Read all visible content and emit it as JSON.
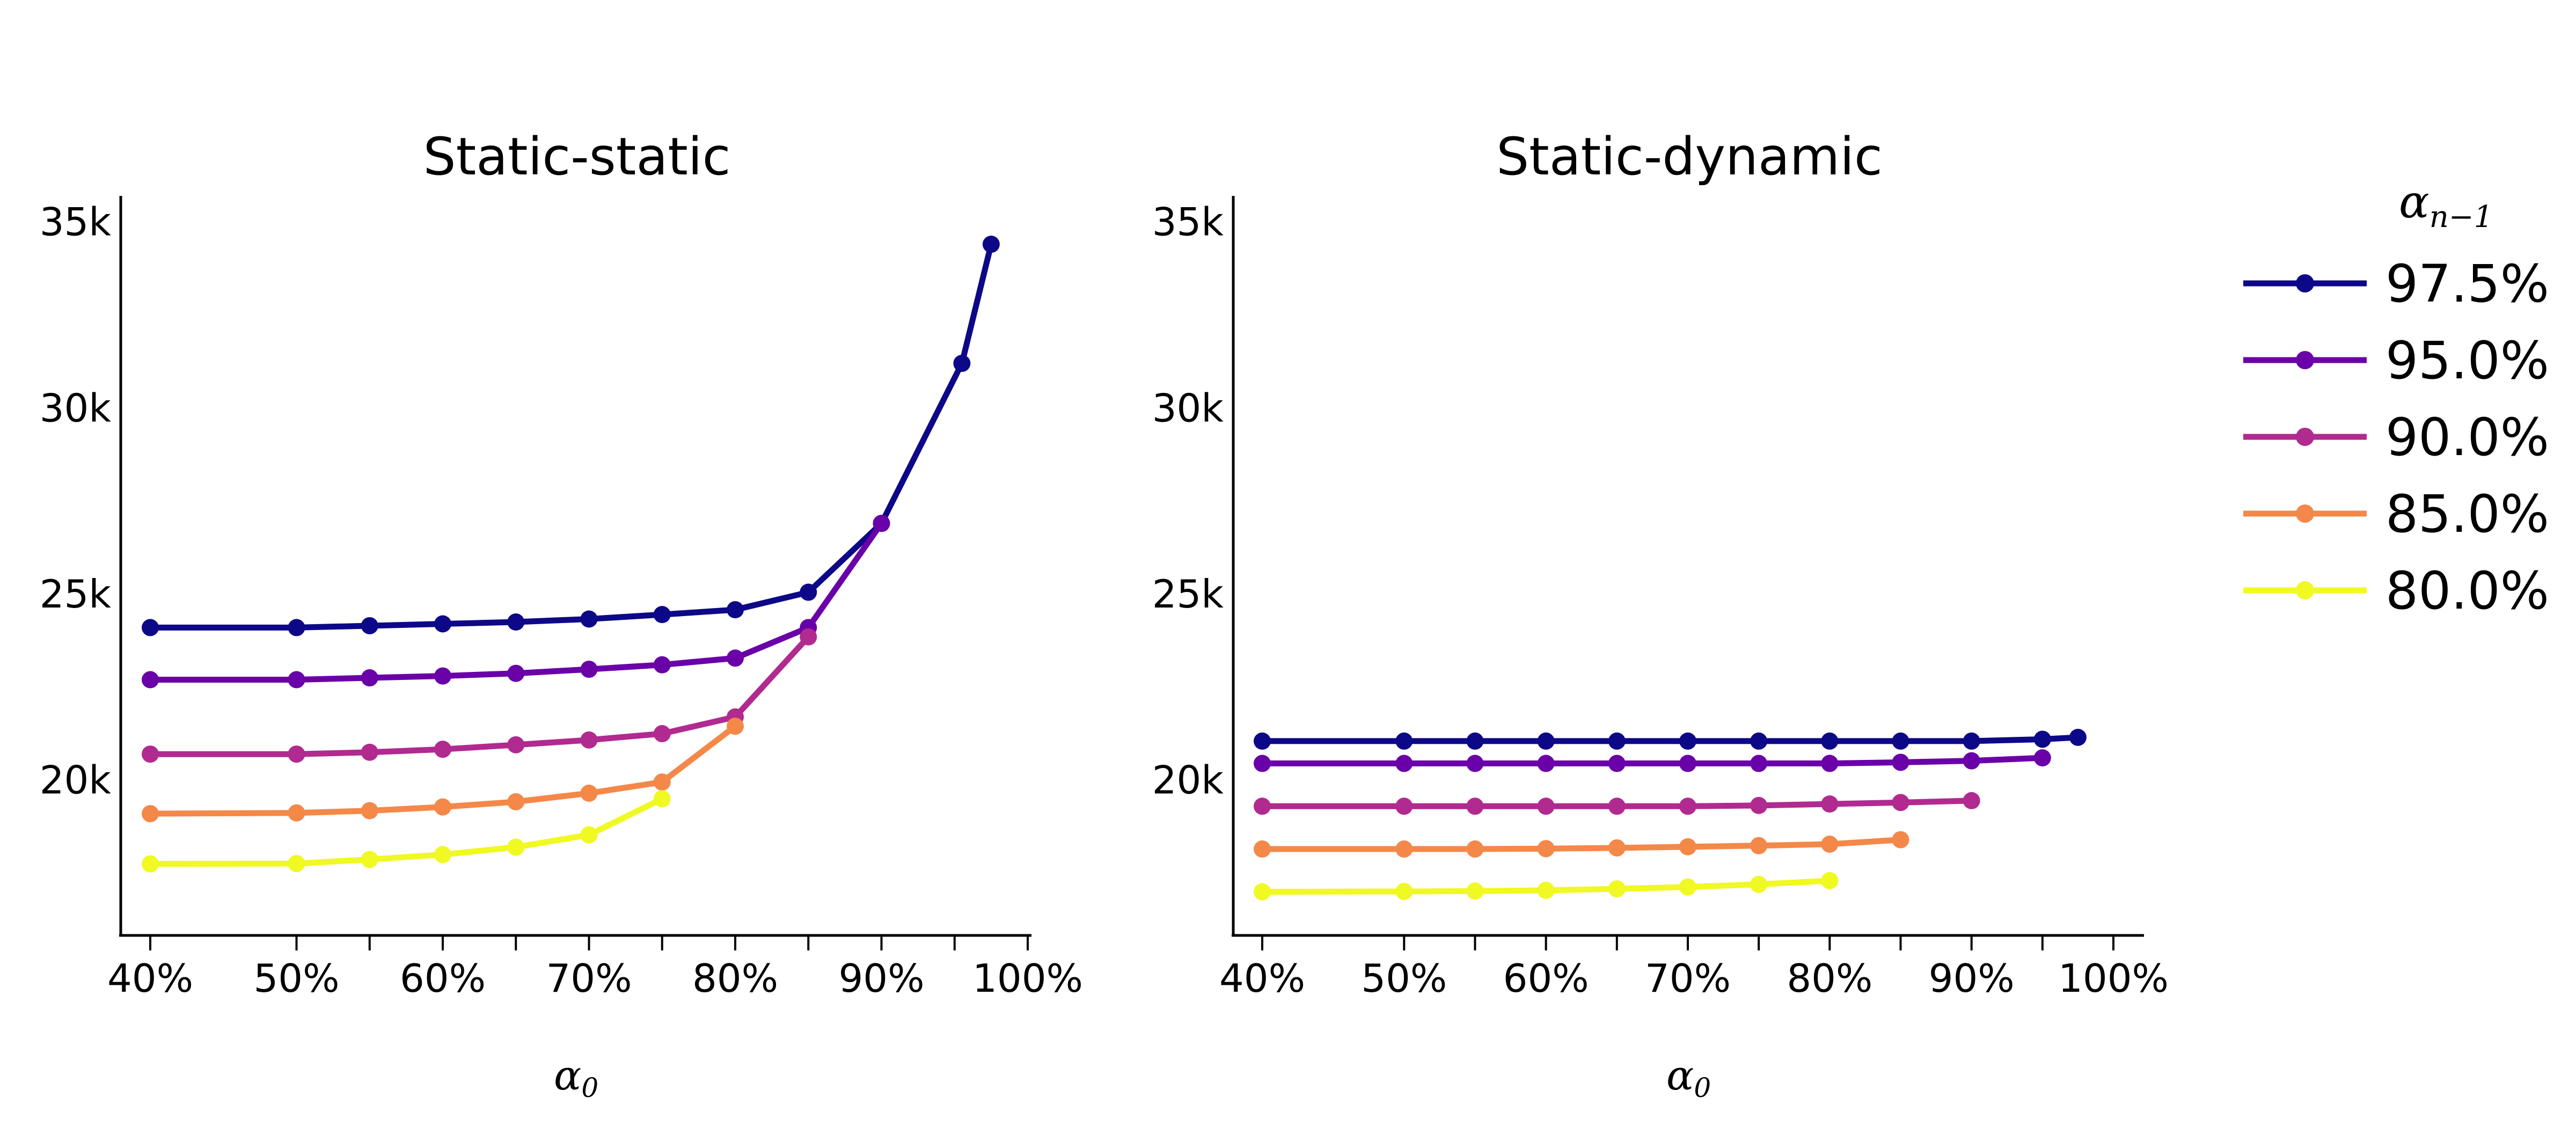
{
  "chart_data": [
    {
      "type": "line",
      "title": "Static-static",
      "xlabel": "α",
      "xlabel_subscript": "0",
      "xticks": [
        "40%",
        "50%",
        "60%",
        "70%",
        "80%",
        "90%",
        "100%"
      ],
      "yticks": [
        "20k",
        "25k",
        "30k",
        "35k"
      ],
      "xlim": [
        38,
        102
      ],
      "ylim": [
        15800,
        35700
      ],
      "series": [
        {
          "name": "97.5%",
          "color": "#0d0887",
          "x": [
            40,
            50,
            55,
            60,
            65,
            70,
            75,
            80,
            85,
            90,
            95.5,
            97.5
          ],
          "y": [
            24100,
            24100,
            24150,
            24200,
            24250,
            24330,
            24450,
            24580,
            25050,
            26900,
            31200,
            34400
          ]
        },
        {
          "name": "95.0%",
          "color": "#6a00a8",
          "x": [
            40,
            50,
            55,
            60,
            65,
            70,
            75,
            80,
            85,
            90
          ],
          "y": [
            22700,
            22700,
            22750,
            22800,
            22870,
            22980,
            23100,
            23280,
            24100,
            26900
          ]
        },
        {
          "name": "90.0%",
          "color": "#b12a90",
          "x": [
            40,
            50,
            55,
            60,
            65,
            70,
            75,
            80,
            85
          ],
          "y": [
            20700,
            20700,
            20750,
            20830,
            20950,
            21080,
            21250,
            21700,
            23850
          ]
        },
        {
          "name": "85.0%",
          "color": "#f48849",
          "x": [
            40,
            50,
            55,
            60,
            65,
            70,
            75,
            80
          ],
          "y": [
            19100,
            19120,
            19180,
            19280,
            19420,
            19650,
            19950,
            21450
          ]
        },
        {
          "name": "80.0%",
          "color": "#f0f921",
          "x": [
            40,
            50,
            55,
            60,
            65,
            70,
            75
          ],
          "y": [
            17750,
            17760,
            17870,
            18000,
            18200,
            18530,
            19500
          ]
        }
      ]
    },
    {
      "type": "line",
      "title": "Static-dynamic",
      "xlabel": "α",
      "xlabel_subscript": "0",
      "xticks": [
        "40%",
        "50%",
        "60%",
        "70%",
        "80%",
        "90%",
        "100%"
      ],
      "yticks": [
        "20k",
        "25k",
        "30k",
        "35k"
      ],
      "xlim": [
        38,
        102
      ],
      "ylim": [
        15800,
        35700
      ],
      "series": [
        {
          "name": "97.5%",
          "color": "#0d0887",
          "x": [
            40,
            50,
            55,
            60,
            65,
            70,
            75,
            80,
            85,
            90,
            95,
            97.5
          ],
          "y": [
            21050,
            21050,
            21050,
            21050,
            21050,
            21050,
            21050,
            21050,
            21050,
            21050,
            21100,
            21150
          ]
        },
        {
          "name": "95.0%",
          "color": "#6a00a8",
          "x": [
            40,
            50,
            55,
            60,
            65,
            70,
            75,
            80,
            85,
            90,
            95
          ],
          "y": [
            20450,
            20450,
            20450,
            20450,
            20450,
            20450,
            20450,
            20450,
            20480,
            20520,
            20600
          ]
        },
        {
          "name": "90.0%",
          "color": "#b12a90",
          "x": [
            40,
            50,
            55,
            60,
            65,
            70,
            75,
            80,
            85,
            90
          ],
          "y": [
            19300,
            19300,
            19300,
            19300,
            19300,
            19300,
            19320,
            19360,
            19400,
            19450
          ]
        },
        {
          "name": "85.0%",
          "color": "#f48849",
          "x": [
            40,
            50,
            55,
            60,
            65,
            70,
            75,
            80,
            85
          ],
          "y": [
            18150,
            18150,
            18150,
            18160,
            18180,
            18210,
            18240,
            18280,
            18400
          ]
        },
        {
          "name": "80.0%",
          "color": "#f0f921",
          "x": [
            40,
            50,
            55,
            60,
            65,
            70,
            75,
            80
          ],
          "y": [
            17000,
            17010,
            17020,
            17040,
            17080,
            17130,
            17200,
            17300
          ]
        }
      ]
    }
  ],
  "legend": {
    "title": "α",
    "title_subscript": "n−1",
    "placement": "right",
    "items": [
      {
        "label": "97.5%",
        "color": "#0d0887"
      },
      {
        "label": "95.0%",
        "color": "#6a00a8"
      },
      {
        "label": "90.0%",
        "color": "#b12a90"
      },
      {
        "label": "85.0%",
        "color": "#f48849"
      },
      {
        "label": "80.0%",
        "color": "#f0f921"
      }
    ]
  }
}
